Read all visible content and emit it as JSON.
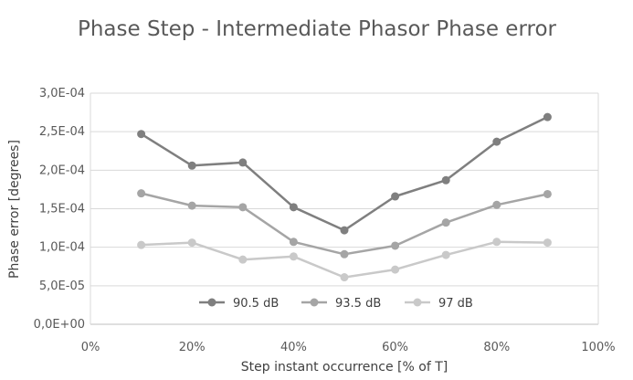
{
  "chart_data": {
    "type": "line",
    "title": "Phase Step - Intermediate Phasor Phase error",
    "xlabel": "Step instant occurrence [% of T]",
    "ylabel": "Phase error [degrees]",
    "xlim": [
      0,
      100
    ],
    "ylim": [
      0,
      0.0003
    ],
    "x_ticks": [
      "0%",
      "20%",
      "40%",
      "60%",
      "80%",
      "100%"
    ],
    "x_tick_values": [
      0,
      20,
      40,
      60,
      80,
      100
    ],
    "y_ticks": [
      "0,0E+00",
      "5,0E-05",
      "1,0E-04",
      "1,5E-04",
      "2,0E-04",
      "2,5E-04",
      "3,0E-04"
    ],
    "y_tick_values": [
      0,
      5e-05,
      0.0001,
      0.00015,
      0.0002,
      0.00025,
      0.0003
    ],
    "grid": "horizontal",
    "legend_position": "bottom-center-inside",
    "x": [
      10,
      20,
      30,
      40,
      50,
      60,
      70,
      80,
      90
    ],
    "series": [
      {
        "name": "90.5 dB",
        "color": "#7f7f7f",
        "values": [
          0.000247,
          0.000206,
          0.00021,
          0.000152,
          0.000122,
          0.000166,
          0.000187,
          0.000237,
          0.000269
        ]
      },
      {
        "name": "93.5 dB",
        "color": "#a5a5a5",
        "values": [
          0.00017,
          0.000154,
          0.000152,
          0.000107,
          9.1e-05,
          0.000102,
          0.000132,
          0.000155,
          0.000169
        ]
      },
      {
        "name": "97 dB",
        "color": "#c9c9c9",
        "values": [
          0.000103,
          0.000106,
          8.4e-05,
          8.8e-05,
          6.1e-05,
          7.1e-05,
          9e-05,
          0.000107,
          0.000106
        ]
      }
    ]
  }
}
